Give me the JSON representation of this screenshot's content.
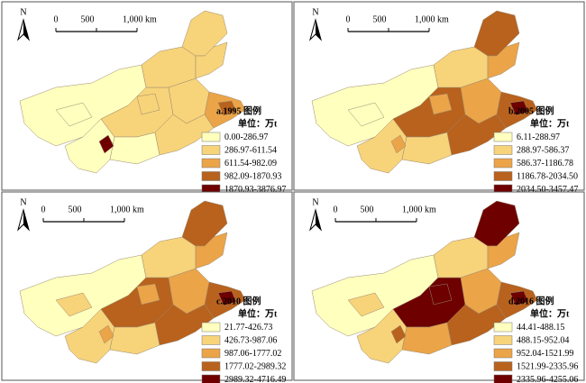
{
  "north": "N",
  "scale_labels": [
    "0",
    "500",
    "1,000 km"
  ],
  "legend_colors": [
    "#ffffbe",
    "#f7d37a",
    "#eba448",
    "#b8621e",
    "#6e0000"
  ],
  "panels": [
    {
      "title": "a.1995 图例",
      "unit": "单位：万t",
      "legend": [
        "0.00-286.97",
        "286.97-611.54",
        "611.54-982.09",
        "982.09-1870.93",
        "1870.93-3876.97"
      ]
    },
    {
      "title": "b.2005 图例",
      "unit": "单位：万t",
      "legend": [
        "6.11-288.97",
        "288.97-586.37",
        "586.37-1186.78",
        "1186.78-2034.50",
        "2034.50-3457.47"
      ]
    },
    {
      "title": "c.2010 图例",
      "unit": "单位：万t",
      "legend": [
        "21.77-426.73",
        "426.73-987.06",
        "987.06-1777.02",
        "1777.02-2989.32",
        "2989.32-4716.49"
      ]
    },
    {
      "title": "d.2016 图例",
      "unit": "单位：万t",
      "legend": [
        "44.41-488.15",
        "488.15-952.04",
        "952.04-1521.99",
        "1521.99-2335.96",
        "2335.96-4255.06"
      ]
    }
  ]
}
